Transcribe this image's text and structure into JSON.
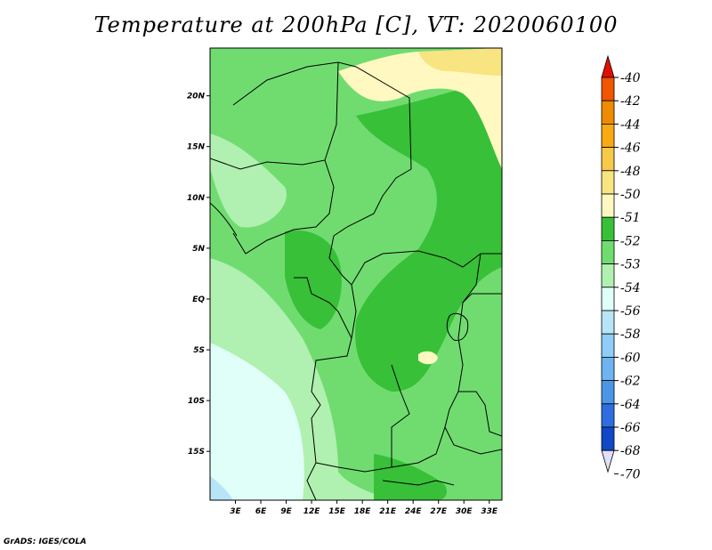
{
  "chart_data": {
    "type": "heatmap",
    "title": "Temperature at 200hPa [C], VT: 2020060100",
    "x_ticks": [
      "3E",
      "6E",
      "9E",
      "12E",
      "15E",
      "18E",
      "21E",
      "24E",
      "27E",
      "30E",
      "33E"
    ],
    "x_tick_values": [
      3,
      6,
      9,
      12,
      15,
      18,
      21,
      24,
      27,
      30,
      33
    ],
    "y_ticks": [
      "20N",
      "15N",
      "10N",
      "5N",
      "EQ",
      "5S",
      "10S",
      "15S"
    ],
    "y_tick_values": [
      20,
      15,
      10,
      5,
      0,
      -5,
      -10,
      -15
    ],
    "xlim": [
      0,
      34.5
    ],
    "ylim": [
      -19.8,
      24.7
    ],
    "colorbar": {
      "labels": [
        "-40",
        "-42",
        "-44",
        "-46",
        "-48",
        "-50",
        "-51",
        "-52",
        "-53",
        "-54",
        "-56",
        "-58",
        "-60",
        "-62",
        "-64",
        "-66",
        "-68",
        "-70"
      ],
      "colors": [
        "#f02000",
        "#f05500",
        "#f08a00",
        "#f8aa10",
        "#f8c848",
        "#f8e480",
        "#fff8c0",
        "#38c038",
        "#70dc70",
        "#b0f0b0",
        "#e0fff8",
        "#b8e4f8",
        "#90ccf8",
        "#6eb4f0",
        "#4c96e8",
        "#2e6ee0",
        "#1048c8",
        "#0a2090"
      ],
      "top_arrow": "#e01000",
      "bottom_arrow": "#e0e0f8"
    }
  },
  "credit": "GrADS: IGES/COLA"
}
